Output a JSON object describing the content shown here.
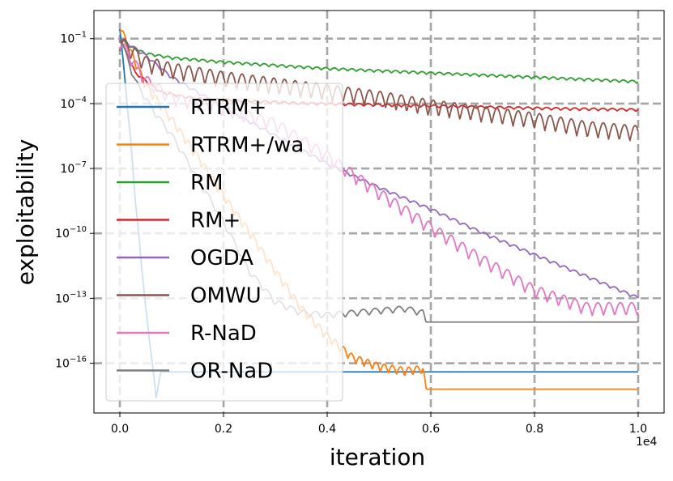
{
  "chart_data": {
    "type": "line",
    "title": "",
    "xlabel": "iteration",
    "ylabel": "exploitability",
    "x_offset_label": "1e4",
    "xscale": "linear",
    "yscale": "log",
    "xlim": [
      -0.05,
      1.05
    ],
    "ylim_log10": [
      -18.3,
      0.3
    ],
    "x_ticks": [
      {
        "value": 0.0,
        "label": "0.0"
      },
      {
        "value": 0.2,
        "label": "0.2"
      },
      {
        "value": 0.4,
        "label": "0.4"
      },
      {
        "value": 0.6,
        "label": "0.6"
      },
      {
        "value": 0.8,
        "label": "0.8"
      },
      {
        "value": 1.0,
        "label": "1.0"
      }
    ],
    "y_ticks": [
      {
        "log10": -1,
        "base": "10",
        "exp": "−1"
      },
      {
        "log10": -4,
        "base": "10",
        "exp": "−4"
      },
      {
        "log10": -7,
        "base": "10",
        "exp": "−7"
      },
      {
        "log10": -10,
        "base": "10",
        "exp": "−10"
      },
      {
        "log10": -13,
        "base": "10",
        "exp": "−13"
      },
      {
        "log10": -16,
        "base": "10",
        "exp": "−16"
      }
    ],
    "grid": true,
    "legend_position": "left",
    "series": [
      {
        "name": "RTRM+",
        "color": "#1f77b4",
        "osc_amp": 0.15,
        "x": [
          0.0,
          0.01,
          0.02,
          0.03,
          0.04,
          0.05,
          0.06,
          0.07,
          0.074,
          0.08,
          0.3,
          0.6,
          1.0
        ],
        "log10_y": [
          -0.5,
          -3.0,
          -5.5,
          -8.5,
          -11.0,
          -13.5,
          -15.5,
          -17.6,
          -17.0,
          -16.4,
          -16.4,
          -16.4,
          -16.4
        ]
      },
      {
        "name": "RTRM+/wa",
        "color": "#ff7f0e",
        "osc_amp": 0.4,
        "x": [
          0.0,
          0.02,
          0.05,
          0.1,
          0.15,
          0.2,
          0.25,
          0.3,
          0.35,
          0.4,
          0.45,
          0.5,
          0.55,
          0.585,
          0.59,
          1.0
        ],
        "log10_y": [
          -0.5,
          -1.6,
          -3.2,
          -4.8,
          -6.5,
          -8.3,
          -10.0,
          -11.8,
          -13.5,
          -14.8,
          -15.8,
          -16.2,
          -16.4,
          -16.3,
          -17.2,
          -17.2
        ]
      },
      {
        "name": "RM",
        "color": "#2ca02c",
        "osc_amp": 0.12,
        "x": [
          0.0,
          0.02,
          0.05,
          0.1,
          0.2,
          0.3,
          0.4,
          0.5,
          0.6,
          0.7,
          0.8,
          0.9,
          1.0
        ],
        "log10_y": [
          -1.0,
          -1.4,
          -1.7,
          -1.9,
          -2.1,
          -2.25,
          -2.4,
          -2.5,
          -2.6,
          -2.7,
          -2.8,
          -2.9,
          -3.0
        ]
      },
      {
        "name": "RM+",
        "color": "#d62728",
        "osc_amp": 0.12,
        "x": [
          0.0,
          0.03,
          0.08,
          0.15,
          0.25,
          0.35,
          0.45,
          0.55,
          0.65,
          0.75,
          0.85,
          1.0
        ],
        "log10_y": [
          -1.0,
          -2.6,
          -3.5,
          -3.8,
          -3.9,
          -4.0,
          -4.05,
          -4.1,
          -4.15,
          -4.2,
          -4.25,
          -4.3
        ]
      },
      {
        "name": "OGDA",
        "color": "#9467bd",
        "osc_amp": 0.15,
        "x": [
          0.0,
          0.05,
          0.1,
          0.2,
          0.3,
          0.4,
          0.5,
          0.6,
          0.7,
          0.8,
          0.9,
          1.0
        ],
        "log10_y": [
          -1.0,
          -1.8,
          -2.8,
          -4.2,
          -5.5,
          -6.8,
          -7.9,
          -8.9,
          -10.0,
          -11.0,
          -12.0,
          -13.0
        ]
      },
      {
        "name": "OMWU",
        "color": "#8c564b",
        "osc_amp": 0.75,
        "x": [
          0.0,
          0.05,
          0.1,
          0.2,
          0.3,
          0.4,
          0.5,
          0.6,
          0.7,
          0.8,
          0.9,
          1.0
        ],
        "log10_y": [
          -1.2,
          -2.2,
          -2.5,
          -2.9,
          -3.2,
          -3.5,
          -3.8,
          -4.2,
          -4.5,
          -4.8,
          -5.2,
          -5.4
        ]
      },
      {
        "name": "R-NaD",
        "color": "#e377c2",
        "osc_amp": 0.6,
        "x": [
          0.0,
          0.05,
          0.1,
          0.2,
          0.3,
          0.4,
          0.5,
          0.6,
          0.7,
          0.8,
          0.9,
          1.0
        ],
        "log10_y": [
          -1.2,
          -3.0,
          -3.8,
          -4.3,
          -5.0,
          -6.5,
          -8.2,
          -9.8,
          -11.3,
          -12.7,
          -13.5,
          -13.5
        ]
      },
      {
        "name": "OR-NaD",
        "color": "#7f7f7f",
        "osc_amp": 0.3,
        "x": [
          0.0,
          0.03,
          0.06,
          0.1,
          0.15,
          0.2,
          0.25,
          0.3,
          0.35,
          0.4,
          0.45,
          0.5,
          0.55,
          0.585,
          0.59,
          1.0
        ],
        "log10_y": [
          -1.0,
          -3.0,
          -4.2,
          -5.5,
          -7.5,
          -9.5,
          -11.8,
          -13.2,
          -13.7,
          -13.8,
          -13.7,
          -13.6,
          -13.5,
          -13.7,
          -14.1,
          -14.1
        ]
      }
    ]
  }
}
